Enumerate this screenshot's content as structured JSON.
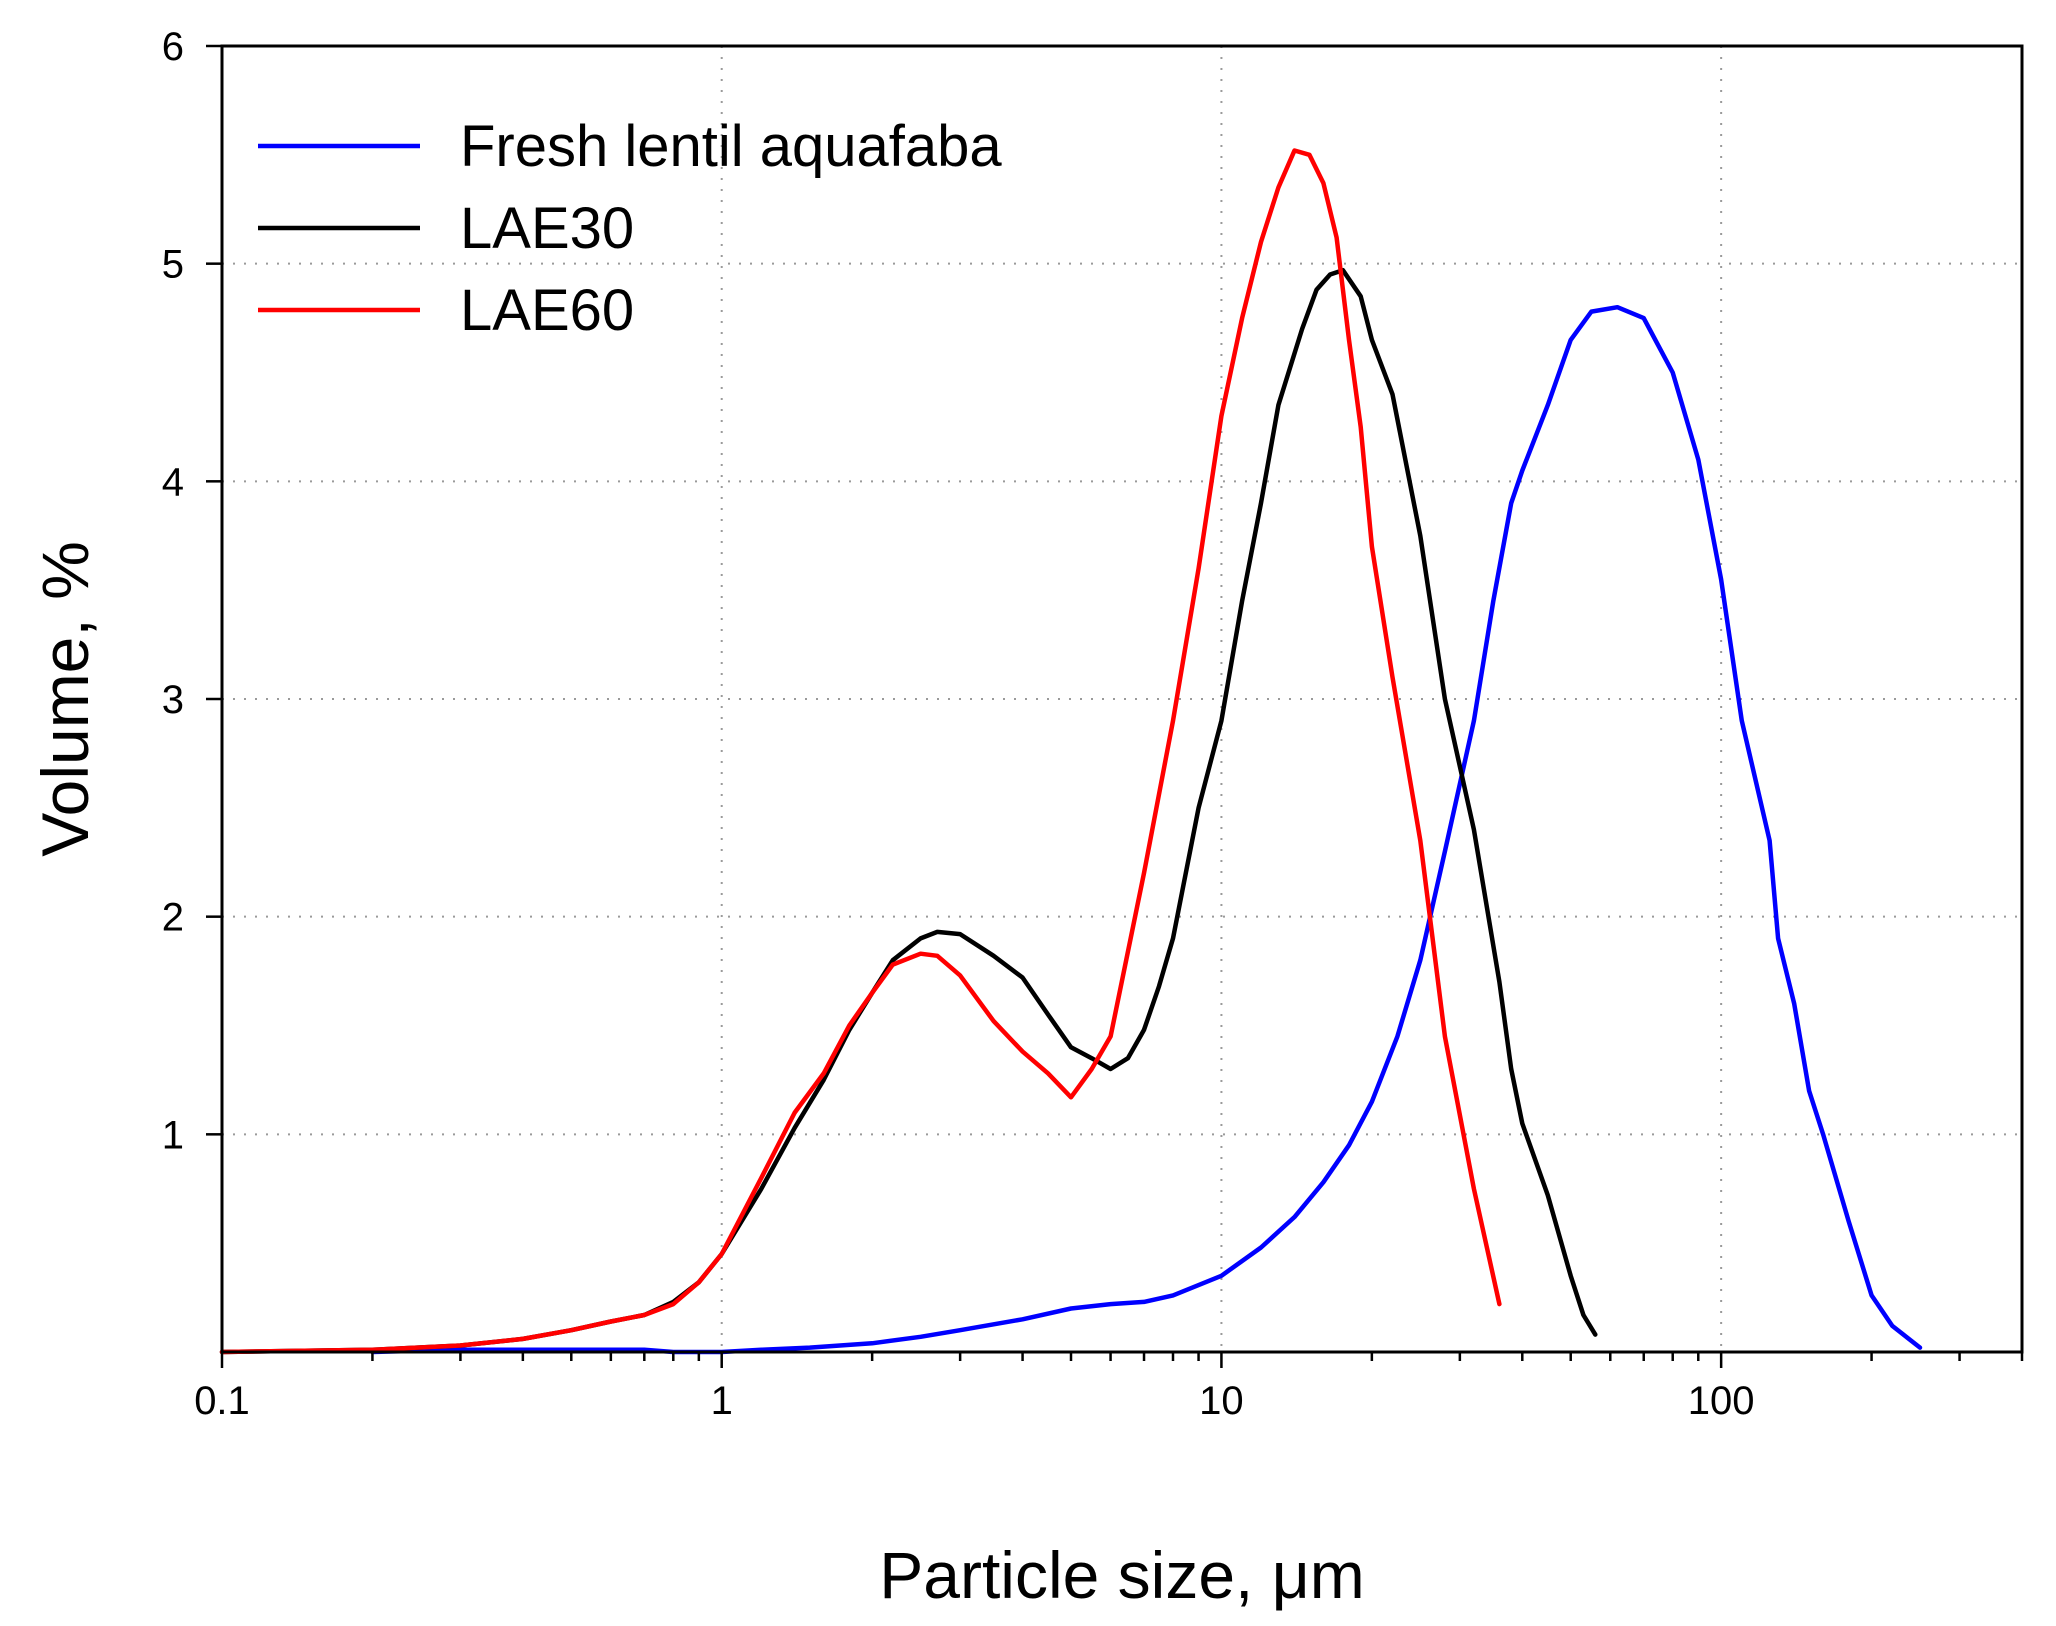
{
  "chart_data": {
    "type": "line",
    "title": "",
    "xlabel": "Particle size, μm",
    "ylabel": "Volume, %",
    "xscale": "log",
    "xlim": [
      0.1,
      400
    ],
    "ylim": [
      0,
      6
    ],
    "x_tick_values": [
      0.1,
      1,
      10,
      100
    ],
    "x_tick_labels": [
      "0.1",
      "1",
      "10",
      "100"
    ],
    "y_tick_values": [
      1,
      2,
      3,
      4,
      5,
      6
    ],
    "y_tick_labels": [
      "1",
      "2",
      "3",
      "4",
      "5",
      "6"
    ],
    "grid": true,
    "legend_position": "top-left",
    "series": [
      {
        "name": "Fresh lentil aquafaba",
        "color": "#0000ff",
        "points": [
          [
            0.2,
            0.0
          ],
          [
            0.3,
            0.01
          ],
          [
            0.5,
            0.01
          ],
          [
            0.7,
            0.01
          ],
          [
            0.8,
            0.0
          ],
          [
            1.0,
            0.0
          ],
          [
            1.2,
            0.01
          ],
          [
            1.5,
            0.02
          ],
          [
            2.0,
            0.04
          ],
          [
            2.5,
            0.07
          ],
          [
            3.0,
            0.1
          ],
          [
            4.0,
            0.15
          ],
          [
            5.0,
            0.2
          ],
          [
            6.0,
            0.22
          ],
          [
            7.0,
            0.23
          ],
          [
            8.0,
            0.26
          ],
          [
            10.0,
            0.35
          ],
          [
            12.0,
            0.48
          ],
          [
            14.0,
            0.62
          ],
          [
            16.0,
            0.78
          ],
          [
            18.0,
            0.95
          ],
          [
            20.0,
            1.15
          ],
          [
            22.5,
            1.45
          ],
          [
            25.0,
            1.8
          ],
          [
            28.0,
            2.3
          ],
          [
            32.0,
            2.9
          ],
          [
            35.0,
            3.45
          ],
          [
            38.0,
            3.9
          ],
          [
            40.0,
            4.05
          ],
          [
            45.0,
            4.35
          ],
          [
            50.0,
            4.65
          ],
          [
            55.0,
            4.78
          ],
          [
            62.0,
            4.8
          ],
          [
            70.0,
            4.75
          ],
          [
            80.0,
            4.5
          ],
          [
            90.0,
            4.1
          ],
          [
            100.0,
            3.55
          ],
          [
            110.0,
            2.9
          ],
          [
            125.0,
            2.35
          ],
          [
            130.0,
            1.9
          ],
          [
            140.0,
            1.6
          ],
          [
            150.0,
            1.2
          ],
          [
            160.0,
            1.0
          ],
          [
            180.0,
            0.6
          ],
          [
            200.0,
            0.26
          ],
          [
            220.0,
            0.12
          ],
          [
            250.0,
            0.02
          ]
        ]
      },
      {
        "name": "LAE30",
        "color": "#000000",
        "points": [
          [
            0.1,
            0.0
          ],
          [
            0.2,
            0.01
          ],
          [
            0.3,
            0.03
          ],
          [
            0.4,
            0.06
          ],
          [
            0.5,
            0.1
          ],
          [
            0.6,
            0.14
          ],
          [
            0.7,
            0.17
          ],
          [
            0.8,
            0.23
          ],
          [
            0.9,
            0.32
          ],
          [
            1.0,
            0.45
          ],
          [
            1.2,
            0.75
          ],
          [
            1.4,
            1.03
          ],
          [
            1.6,
            1.25
          ],
          [
            1.8,
            1.48
          ],
          [
            2.0,
            1.65
          ],
          [
            2.2,
            1.8
          ],
          [
            2.5,
            1.9
          ],
          [
            2.7,
            1.93
          ],
          [
            3.0,
            1.92
          ],
          [
            3.5,
            1.82
          ],
          [
            4.0,
            1.72
          ],
          [
            4.5,
            1.55
          ],
          [
            5.0,
            1.4
          ],
          [
            5.5,
            1.35
          ],
          [
            6.0,
            1.3
          ],
          [
            6.5,
            1.35
          ],
          [
            7.0,
            1.48
          ],
          [
            7.5,
            1.68
          ],
          [
            8.0,
            1.9
          ],
          [
            9.0,
            2.5
          ],
          [
            10.0,
            2.9
          ],
          [
            11.0,
            3.45
          ],
          [
            12.0,
            3.9
          ],
          [
            13.0,
            4.35
          ],
          [
            14.5,
            4.7
          ],
          [
            15.5,
            4.88
          ],
          [
            16.5,
            4.95
          ],
          [
            17.5,
            4.97
          ],
          [
            19.0,
            4.85
          ],
          [
            20.0,
            4.65
          ],
          [
            22.0,
            4.4
          ],
          [
            25.0,
            3.75
          ],
          [
            28.0,
            3.0
          ],
          [
            32.0,
            2.4
          ],
          [
            36.0,
            1.7
          ],
          [
            38.0,
            1.3
          ],
          [
            40.0,
            1.05
          ],
          [
            45.0,
            0.72
          ],
          [
            50.0,
            0.35
          ],
          [
            53.0,
            0.17
          ],
          [
            56.0,
            0.08
          ]
        ]
      },
      {
        "name": "LAE60",
        "color": "#ff0000",
        "points": [
          [
            0.1,
            0.0
          ],
          [
            0.2,
            0.01
          ],
          [
            0.3,
            0.03
          ],
          [
            0.4,
            0.06
          ],
          [
            0.5,
            0.1
          ],
          [
            0.6,
            0.14
          ],
          [
            0.7,
            0.17
          ],
          [
            0.8,
            0.22
          ],
          [
            0.9,
            0.32
          ],
          [
            1.0,
            0.45
          ],
          [
            1.2,
            0.8
          ],
          [
            1.4,
            1.1
          ],
          [
            1.6,
            1.28
          ],
          [
            1.8,
            1.5
          ],
          [
            2.0,
            1.65
          ],
          [
            2.2,
            1.78
          ],
          [
            2.5,
            1.83
          ],
          [
            2.7,
            1.82
          ],
          [
            3.0,
            1.73
          ],
          [
            3.5,
            1.52
          ],
          [
            4.0,
            1.38
          ],
          [
            4.5,
            1.28
          ],
          [
            5.0,
            1.17
          ],
          [
            5.5,
            1.3
          ],
          [
            6.0,
            1.45
          ],
          [
            7.0,
            2.2
          ],
          [
            8.0,
            2.9
          ],
          [
            9.0,
            3.6
          ],
          [
            10.0,
            4.3
          ],
          [
            11.0,
            4.75
          ],
          [
            12.0,
            5.1
          ],
          [
            13.0,
            5.35
          ],
          [
            14.0,
            5.52
          ],
          [
            15.0,
            5.5
          ],
          [
            16.0,
            5.37
          ],
          [
            17.0,
            5.12
          ],
          [
            18.0,
            4.65
          ],
          [
            19.0,
            4.25
          ],
          [
            20.0,
            3.7
          ],
          [
            22.0,
            3.1
          ],
          [
            25.0,
            2.35
          ],
          [
            28.0,
            1.45
          ],
          [
            32.0,
            0.75
          ],
          [
            36.0,
            0.22
          ]
        ]
      }
    ]
  }
}
